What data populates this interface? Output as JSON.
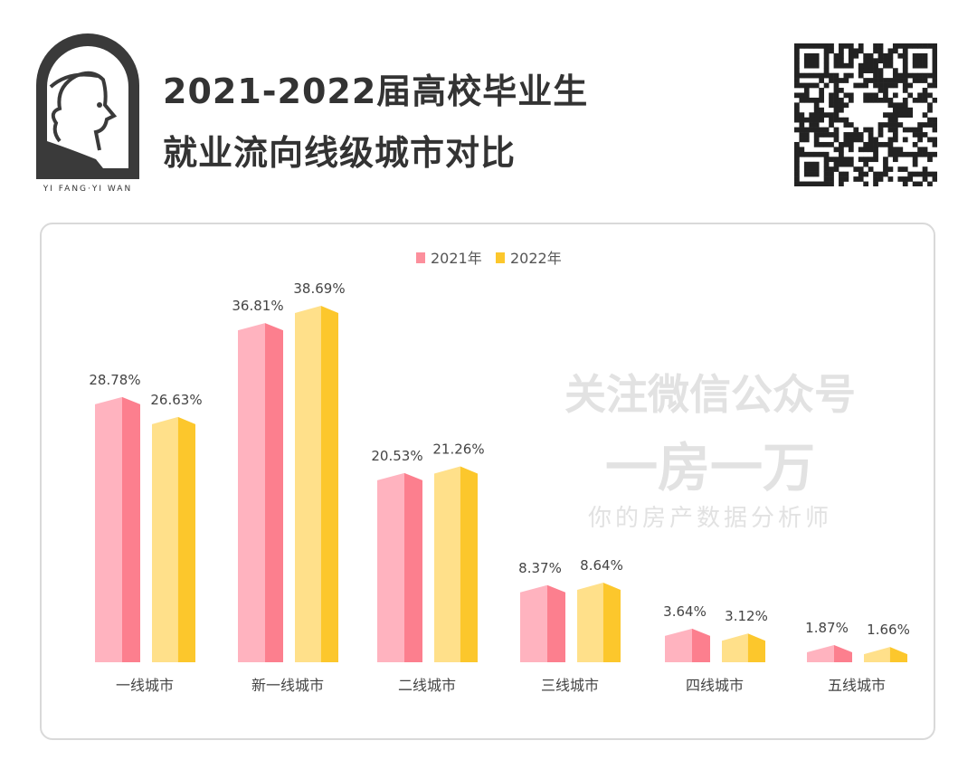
{
  "header": {
    "title_line1": "2021-2022届高校毕业生",
    "title_line2": "就业流向线级城市对比",
    "logo_text": "YI FANG·YI WAN"
  },
  "watermark": {
    "line1": "关注微信公众号",
    "line2": "一房一万",
    "line3": "你的房产数据分析师"
  },
  "colors": {
    "2021_light": "#ffb3bf",
    "2021_dark": "#fc7f8e",
    "2022_light": "#ffe08a",
    "2022_dark": "#fcc72c"
  },
  "chart_data": {
    "type": "bar",
    "categories": [
      "一线城市",
      "新一线城市",
      "二线城市",
      "三线城市",
      "四线城市",
      "五线城市"
    ],
    "series": [
      {
        "name": "2021年",
        "values": [
          28.78,
          36.81,
          20.53,
          8.37,
          3.64,
          1.87
        ],
        "labels": [
          "28.78%",
          "36.81%",
          "20.53%",
          "8.37%",
          "3.64%",
          "1.87%"
        ]
      },
      {
        "name": "2022年",
        "values": [
          26.63,
          38.69,
          21.26,
          8.64,
          3.12,
          1.66
        ],
        "labels": [
          "26.63%",
          "38.69%",
          "21.26%",
          "8.64%",
          "3.12%",
          "1.66%"
        ]
      }
    ],
    "legend": "top-center",
    "grid": false,
    "ylim": [
      0,
      40
    ]
  }
}
